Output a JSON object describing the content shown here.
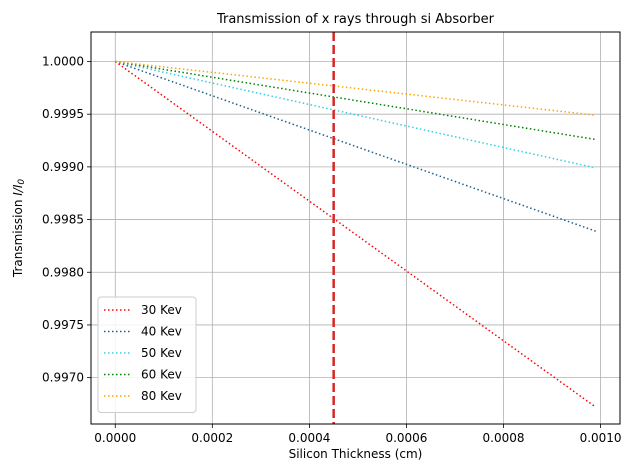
{
  "chart_data": {
    "type": "line",
    "title": "Transmission of x rays through si Absorber",
    "xlabel": "Silicon Thickness (cm)",
    "ylabel_prefix": "Transmission ",
    "ylabel_math": "I/I",
    "ylabel_sub": "0",
    "xlim": [
      -5e-05,
      0.00104
    ],
    "ylim": [
      0.99656,
      1.00028
    ],
    "x_ticks": [
      0,
      0.0002,
      0.0004,
      0.0006,
      0.0008,
      0.001
    ],
    "x_tick_labels": [
      "0.0000",
      "0.0002",
      "0.0004",
      "0.0006",
      "0.0008",
      "0.0010"
    ],
    "y_ticks": [
      0.997,
      0.9975,
      0.998,
      0.9985,
      0.999,
      0.9995,
      1.0
    ],
    "y_tick_labels": [
      "0.9970",
      "0.9975",
      "0.9980",
      "0.9985",
      "0.9990",
      "0.9995",
      "1.0000"
    ],
    "grid": true,
    "legend_position": "lower-left",
    "x_range": [
      0,
      0.00099
    ],
    "series": [
      {
        "name": "30 Kev",
        "color": "#ff0000",
        "values": [
          1.0,
          0.99672
        ]
      },
      {
        "name": "40 Kev",
        "color": "#1f5f8b",
        "values": [
          1.0,
          0.99839
        ]
      },
      {
        "name": "50 Kev",
        "color": "#2ed0e8",
        "values": [
          1.0,
          0.99899
        ]
      },
      {
        "name": "60 Kev",
        "color": "#008000",
        "values": [
          1.0,
          0.99926
        ]
      },
      {
        "name": "80 Kev",
        "color": "#ffa500",
        "values": [
          1.0,
          0.99949
        ]
      }
    ],
    "vline": {
      "x": 0.00045,
      "color": "#d62728",
      "style": "dashed"
    }
  }
}
